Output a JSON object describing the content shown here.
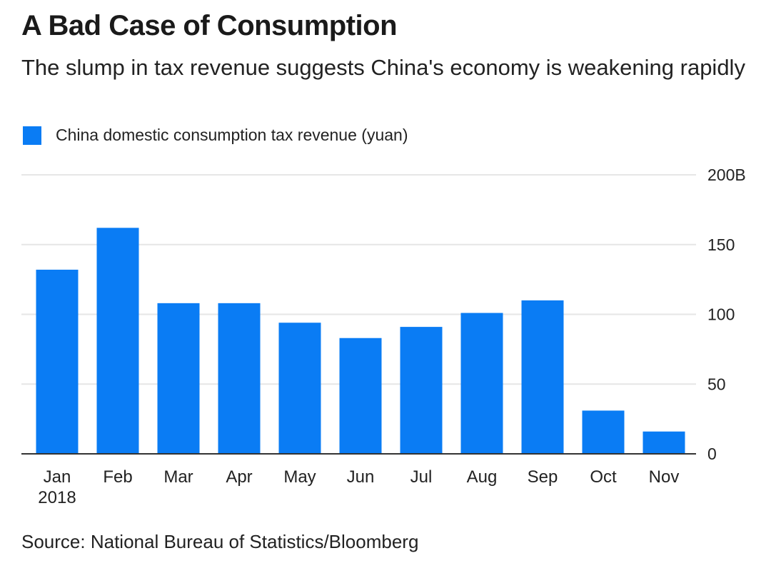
{
  "header": {
    "title": "A Bad Case of Consumption",
    "subtitle": "The slump in tax revenue suggests China's economy is weakening rapidly"
  },
  "legend": {
    "label": "China domestic consumption tax revenue (yuan)",
    "color": "#0a7cf4"
  },
  "footer": {
    "source": "Source: National Bureau of Statistics/Bloomberg"
  },
  "chart_data": {
    "type": "bar",
    "title": "A Bad Case of Consumption",
    "subtitle": "The slump in tax revenue suggests China's economy is weakening rapidly",
    "categories": [
      "Jan",
      "Feb",
      "Mar",
      "Apr",
      "May",
      "Jun",
      "Jul",
      "Aug",
      "Sep",
      "Oct",
      "Nov"
    ],
    "category_sublabels": [
      "2018",
      "",
      "",
      "",
      "",
      "",
      "",
      "",
      "",
      "",
      ""
    ],
    "series": [
      {
        "name": "China domestic consumption tax revenue (yuan)",
        "color": "#0a7cf4",
        "values": [
          132,
          162,
          108,
          108,
          94,
          83,
          91,
          101,
          110,
          31,
          16
        ]
      }
    ],
    "ylim": [
      0,
      200
    ],
    "yticks": [
      0,
      50,
      100,
      150,
      200
    ],
    "ytick_labels": [
      "0",
      "50",
      "100",
      "150",
      "200B"
    ],
    "y_axis_side": "right",
    "grid": true,
    "legend_position": "top-left",
    "xlabel": "",
    "ylabel": ""
  }
}
